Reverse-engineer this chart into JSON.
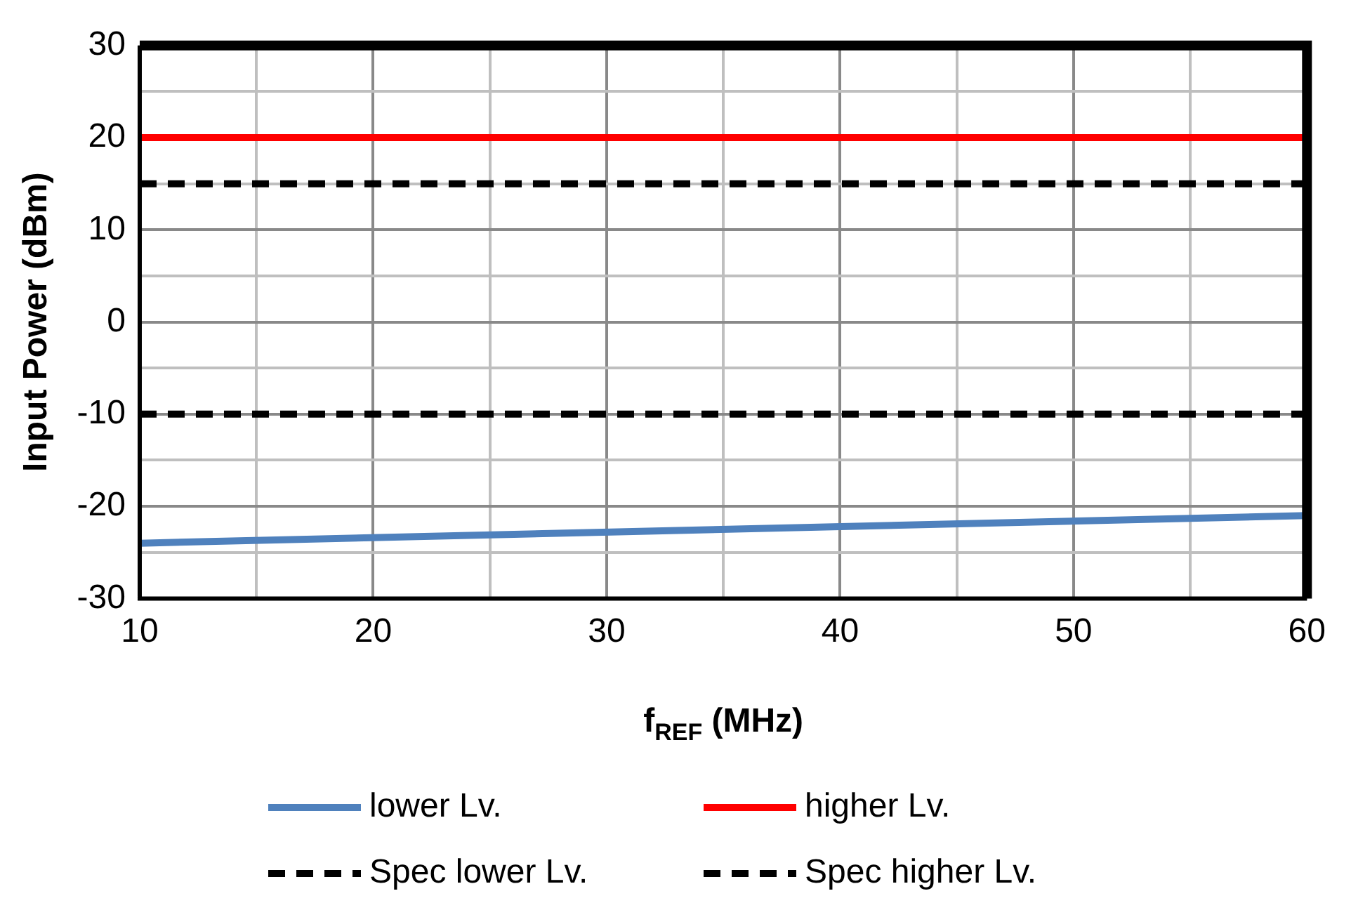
{
  "chart_data": {
    "type": "line",
    "xlabel": "f$_{REF}$ (MHz)",
    "ylabel": "Input Power (dBm)",
    "xlim": [
      10,
      60
    ],
    "ylim": [
      -30,
      30
    ],
    "xticks": [
      10,
      {
        "value": 15,
        "label": null
      },
      20,
      {
        "value": 25,
        "label": null
      },
      30,
      {
        "value": 35,
        "label": null
      },
      40,
      {
        "value": 45,
        "label": null
      },
      50,
      {
        "value": 55,
        "label": null
      },
      60
    ],
    "yticks": [
      -30,
      {
        "value": -25,
        "label": null
      },
      -20,
      {
        "value": -15,
        "label": null
      },
      -10,
      {
        "value": -5,
        "label": null
      },
      0,
      {
        "value": 5,
        "label": null
      },
      10,
      {
        "value": 15,
        "label": null
      },
      20,
      {
        "value": 25,
        "label": null
      },
      30
    ],
    "grid": true,
    "legend": "bottom",
    "marker": "none",
    "x": [
      10,
      60
    ],
    "series": [
      {
        "name": "lower Lv.",
        "color": "#4f81bd",
        "values": [
          -24,
          -21
        ],
        "line_style": "solid"
      },
      {
        "name": "higher Lv.",
        "color": "#ff0000",
        "values": [
          20,
          20
        ],
        "line_style": "solid"
      },
      {
        "name": "Spec lower Lv.",
        "color": "#000000",
        "values": [
          -10,
          -10
        ],
        "line_style": "dashed"
      },
      {
        "name": "Spec higher Lv.",
        "color": "#000000",
        "values": [
          15,
          15
        ],
        "line_style": "dashed"
      }
    ]
  }
}
